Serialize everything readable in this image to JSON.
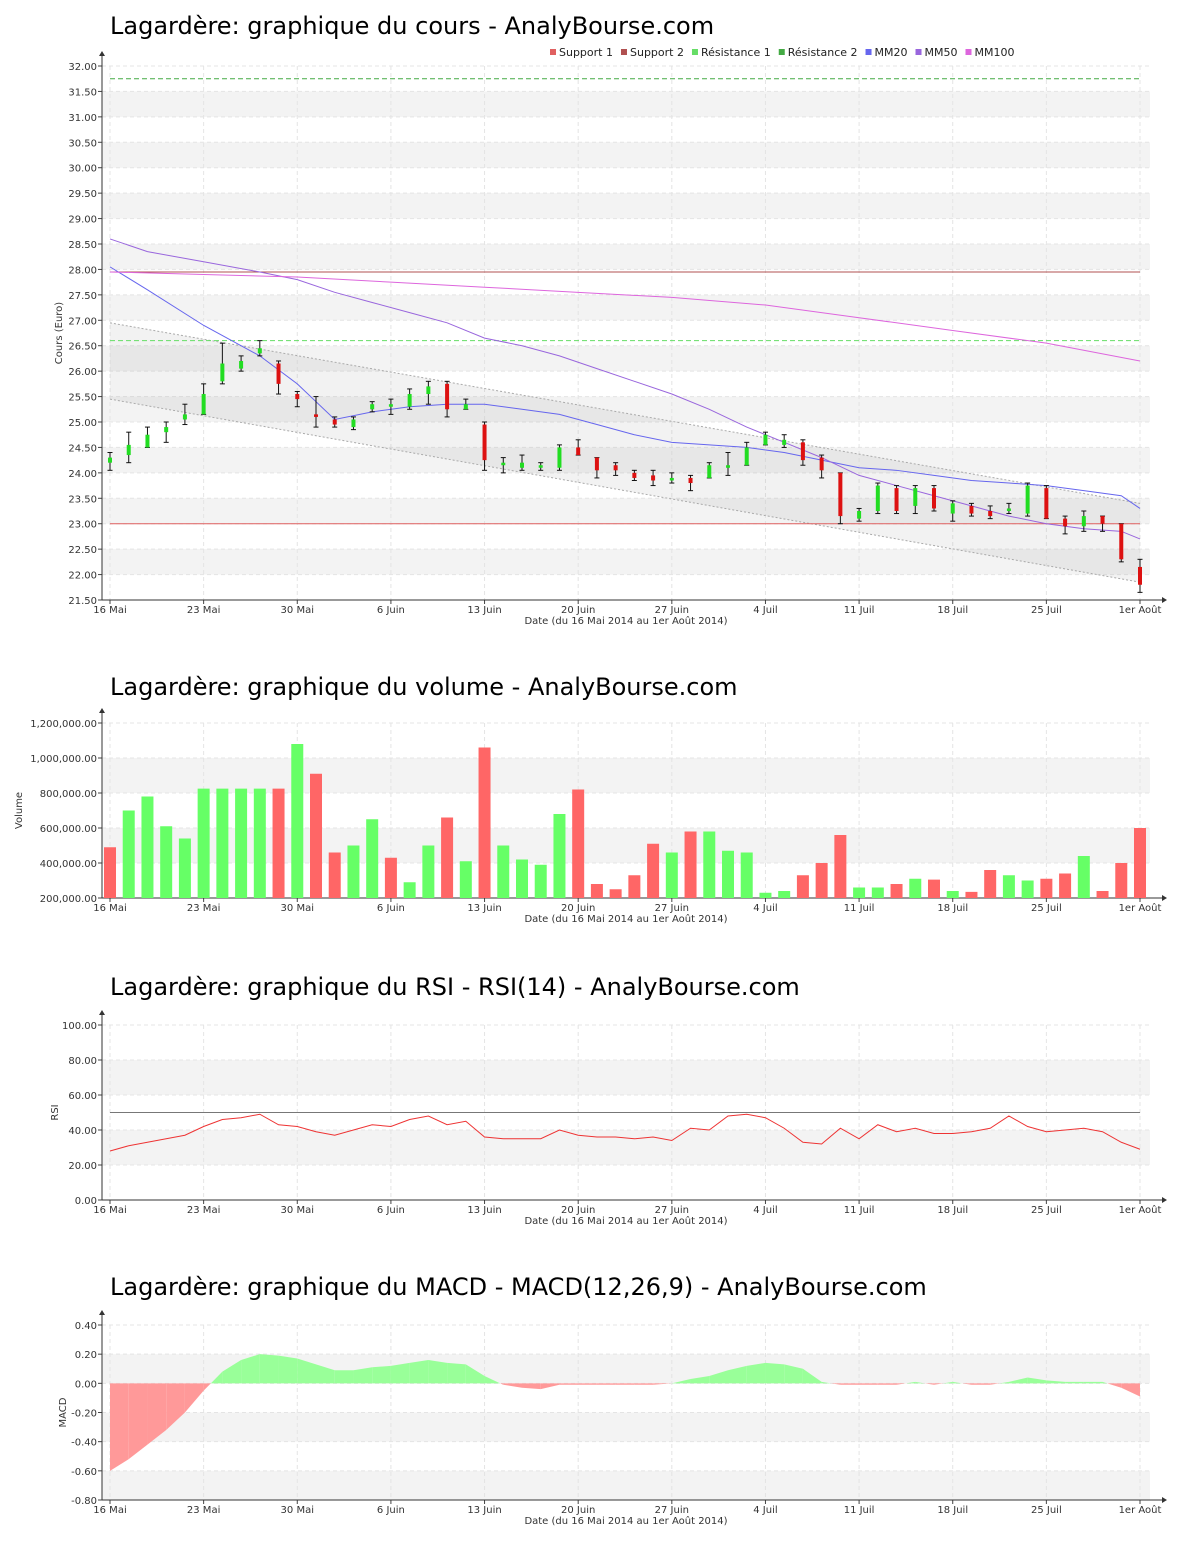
{
  "chart_data": [
    {
      "type": "candlestick",
      "title": "Lagardère: graphique du cours - AnalyBourse.com",
      "ylabel": "Cours (Euro)",
      "xlabel": "Date (du 16 Mai 2014 au 1er Août 2014)",
      "ylim": [
        21.5,
        32.0
      ],
      "yticks": [
        "32.00",
        "31.50",
        "31.00",
        "30.50",
        "30.00",
        "29.50",
        "29.00",
        "28.50",
        "28.00",
        "27.50",
        "27.00",
        "26.50",
        "26.00",
        "25.50",
        "25.00",
        "24.50",
        "24.00",
        "23.50",
        "23.00",
        "22.50",
        "22.00",
        "21.50"
      ],
      "xticks": [
        {
          "i": 0,
          "label": "16 Mai"
        },
        {
          "i": 5,
          "label": "23 Mai"
        },
        {
          "i": 10,
          "label": "30 Mai"
        },
        {
          "i": 15,
          "label": "6 Juin"
        },
        {
          "i": 20,
          "label": "13 Juin"
        },
        {
          "i": 25,
          "label": "20 Juin"
        },
        {
          "i": 30,
          "label": "27 Juin"
        },
        {
          "i": 35,
          "label": "4 Juil"
        },
        {
          "i": 40,
          "label": "11 Juil"
        },
        {
          "i": 45,
          "label": "18 Juil"
        },
        {
          "i": 50,
          "label": "25 Juil"
        },
        {
          "i": 55,
          "label": "1er Août"
        }
      ],
      "legend": [
        {
          "name": "Support 1",
          "color": "#e06060"
        },
        {
          "name": "Support 2",
          "color": "#b05050"
        },
        {
          "name": "Résistance 1",
          "color": "#66dd66"
        },
        {
          "name": "Résistance 2",
          "color": "#44aa44"
        },
        {
          "name": "MM20",
          "color": "#6666ee"
        },
        {
          "name": "MM50",
          "color": "#9966dd"
        },
        {
          "name": "MM100",
          "color": "#dd66dd"
        }
      ],
      "candles": [
        {
          "o": 24.2,
          "c": 24.3,
          "h": 24.4,
          "l": 24.05
        },
        {
          "o": 24.35,
          "c": 24.55,
          "h": 24.8,
          "l": 24.2
        },
        {
          "o": 24.5,
          "c": 24.75,
          "h": 24.9,
          "l": 24.5
        },
        {
          "o": 24.8,
          "c": 24.9,
          "h": 25.0,
          "l": 24.6
        },
        {
          "o": 25.05,
          "c": 25.15,
          "h": 25.35,
          "l": 24.95
        },
        {
          "o": 25.15,
          "c": 25.55,
          "h": 25.75,
          "l": 25.15
        },
        {
          "o": 25.8,
          "c": 26.15,
          "h": 26.55,
          "l": 25.75
        },
        {
          "o": 26.05,
          "c": 26.2,
          "h": 26.3,
          "l": 26.0
        },
        {
          "o": 26.35,
          "c": 26.45,
          "h": 26.6,
          "l": 26.3
        },
        {
          "o": 26.15,
          "c": 25.75,
          "h": 26.2,
          "l": 25.55
        },
        {
          "o": 25.55,
          "c": 25.45,
          "h": 25.6,
          "l": 25.3
        },
        {
          "o": 25.15,
          "c": 25.1,
          "h": 25.5,
          "l": 24.9
        },
        {
          "o": 25.05,
          "c": 24.95,
          "h": 25.1,
          "l": 24.9
        },
        {
          "o": 24.9,
          "c": 25.05,
          "h": 25.1,
          "l": 24.85
        },
        {
          "o": 25.25,
          "c": 25.35,
          "h": 25.4,
          "l": 25.2
        },
        {
          "o": 25.3,
          "c": 25.35,
          "h": 25.45,
          "l": 25.15
        },
        {
          "o": 25.3,
          "c": 25.55,
          "h": 25.65,
          "l": 25.25
        },
        {
          "o": 25.55,
          "c": 25.7,
          "h": 25.8,
          "l": 25.35
        },
        {
          "o": 25.75,
          "c": 25.25,
          "h": 25.8,
          "l": 25.1
        },
        {
          "o": 25.25,
          "c": 25.35,
          "h": 25.45,
          "l": 25.25
        },
        {
          "o": 24.95,
          "c": 24.25,
          "h": 25.0,
          "l": 24.05
        },
        {
          "o": 24.15,
          "c": 24.2,
          "h": 24.3,
          "l": 24.0
        },
        {
          "o": 24.1,
          "c": 24.2,
          "h": 24.35,
          "l": 24.05
        },
        {
          "o": 24.1,
          "c": 24.15,
          "h": 24.2,
          "l": 24.05
        },
        {
          "o": 24.1,
          "c": 24.5,
          "h": 24.55,
          "l": 24.05
        },
        {
          "o": 24.5,
          "c": 24.35,
          "h": 24.65,
          "l": 24.35
        },
        {
          "o": 24.3,
          "c": 24.05,
          "h": 24.3,
          "l": 23.9
        },
        {
          "o": 24.15,
          "c": 24.05,
          "h": 24.2,
          "l": 23.95
        },
        {
          "o": 24.0,
          "c": 23.9,
          "h": 24.05,
          "l": 23.85
        },
        {
          "o": 23.95,
          "c": 23.85,
          "h": 24.05,
          "l": 23.75
        },
        {
          "o": 23.85,
          "c": 23.9,
          "h": 24.0,
          "l": 23.8
        },
        {
          "o": 23.9,
          "c": 23.8,
          "h": 23.95,
          "l": 23.65
        },
        {
          "o": 23.9,
          "c": 24.15,
          "h": 24.2,
          "l": 23.9
        },
        {
          "o": 24.1,
          "c": 24.15,
          "h": 24.4,
          "l": 23.95
        },
        {
          "o": 24.15,
          "c": 24.5,
          "h": 24.6,
          "l": 24.15
        },
        {
          "o": 24.55,
          "c": 24.75,
          "h": 24.8,
          "l": 24.55
        },
        {
          "o": 24.55,
          "c": 24.65,
          "h": 24.75,
          "l": 24.5
        },
        {
          "o": 24.6,
          "c": 24.25,
          "h": 24.65,
          "l": 24.15
        },
        {
          "o": 24.3,
          "c": 24.05,
          "h": 24.35,
          "l": 23.9
        },
        {
          "o": 24.0,
          "c": 23.15,
          "h": 24.0,
          "l": 23.0
        },
        {
          "o": 23.1,
          "c": 23.25,
          "h": 23.3,
          "l": 23.05
        },
        {
          "o": 23.25,
          "c": 23.75,
          "h": 23.8,
          "l": 23.2
        },
        {
          "o": 23.7,
          "c": 23.25,
          "h": 23.75,
          "l": 23.2
        },
        {
          "o": 23.35,
          "c": 23.7,
          "h": 23.75,
          "l": 23.2
        },
        {
          "o": 23.7,
          "c": 23.3,
          "h": 23.75,
          "l": 23.25
        },
        {
          "o": 23.2,
          "c": 23.4,
          "h": 23.45,
          "l": 23.05
        },
        {
          "o": 23.35,
          "c": 23.2,
          "h": 23.4,
          "l": 23.15
        },
        {
          "o": 23.25,
          "c": 23.15,
          "h": 23.35,
          "l": 23.1
        },
        {
          "o": 23.25,
          "c": 23.3,
          "h": 23.4,
          "l": 23.2
        },
        {
          "o": 23.2,
          "c": 23.75,
          "h": 23.8,
          "l": 23.15
        },
        {
          "o": 23.7,
          "c": 23.1,
          "h": 23.75,
          "l": 23.1
        },
        {
          "o": 23.1,
          "c": 22.95,
          "h": 23.15,
          "l": 22.8
        },
        {
          "o": 22.95,
          "c": 23.15,
          "h": 23.25,
          "l": 22.85
        },
        {
          "o": 23.15,
          "c": 23.0,
          "h": 23.15,
          "l": 22.85
        },
        {
          "o": 23.0,
          "c": 22.3,
          "h": 23.0,
          "l": 22.25
        },
        {
          "o": 22.15,
          "c": 21.8,
          "h": 22.3,
          "l": 21.65
        }
      ],
      "lines": [
        {
          "name": "MM20",
          "color": "#6666ee",
          "points": [
            [
              0,
              28.05
            ],
            [
              2,
              27.6
            ],
            [
              5,
              26.9
            ],
            [
              8,
              26.3
            ],
            [
              10,
              25.75
            ],
            [
              12,
              25.05
            ],
            [
              14,
              25.2
            ],
            [
              16,
              25.3
            ],
            [
              18,
              25.35
            ],
            [
              20,
              25.35
            ],
            [
              22,
              25.25
            ],
            [
              24,
              25.15
            ],
            [
              26,
              24.95
            ],
            [
              28,
              24.75
            ],
            [
              30,
              24.6
            ],
            [
              32,
              24.55
            ],
            [
              34,
              24.5
            ],
            [
              36,
              24.4
            ],
            [
              38,
              24.25
            ],
            [
              40,
              24.1
            ],
            [
              42,
              24.05
            ],
            [
              44,
              23.95
            ],
            [
              46,
              23.85
            ],
            [
              48,
              23.8
            ],
            [
              50,
              23.75
            ],
            [
              52,
              23.65
            ],
            [
              54,
              23.55
            ],
            [
              55,
              23.3
            ]
          ]
        },
        {
          "name": "MM50",
          "color": "#9966dd",
          "points": [
            [
              0,
              28.6
            ],
            [
              2,
              28.35
            ],
            [
              5,
              28.15
            ],
            [
              8,
              27.95
            ],
            [
              10,
              27.8
            ],
            [
              12,
              27.55
            ],
            [
              14,
              27.35
            ],
            [
              16,
              27.15
            ],
            [
              18,
              26.95
            ],
            [
              20,
              26.65
            ],
            [
              22,
              26.5
            ],
            [
              24,
              26.3
            ],
            [
              26,
              26.05
            ],
            [
              28,
              25.8
            ],
            [
              30,
              25.55
            ],
            [
              32,
              25.25
            ],
            [
              34,
              24.9
            ],
            [
              36,
              24.6
            ],
            [
              38,
              24.3
            ],
            [
              40,
              23.95
            ],
            [
              42,
              23.75
            ],
            [
              44,
              23.55
            ],
            [
              46,
              23.35
            ],
            [
              48,
              23.15
            ],
            [
              50,
              23.0
            ],
            [
              52,
              22.9
            ],
            [
              54,
              22.85
            ],
            [
              55,
              22.7
            ]
          ]
        },
        {
          "name": "MM100",
          "color": "#dd66dd",
          "points": [
            [
              0,
              27.95
            ],
            [
              5,
              27.9
            ],
            [
              10,
              27.85
            ],
            [
              15,
              27.75
            ],
            [
              20,
              27.65
            ],
            [
              25,
              27.55
            ],
            [
              30,
              27.45
            ],
            [
              35,
              27.3
            ],
            [
              40,
              27.05
            ],
            [
              45,
              26.8
            ],
            [
              50,
              26.55
            ],
            [
              55,
              26.2
            ]
          ]
        }
      ],
      "channel": {
        "upper": [
          [
            0,
            26.95
          ],
          [
            55,
            23.4
          ]
        ],
        "lower": [
          [
            0,
            25.45
          ],
          [
            55,
            21.85
          ]
        ]
      },
      "hlines": [
        {
          "name": "Support 1",
          "y": 23.0,
          "color": "#e06060",
          "style": "solid"
        },
        {
          "name": "Support 2",
          "y": 27.95,
          "color": "#b05050",
          "style": "solid"
        },
        {
          "name": "Résistance 1",
          "y": 26.6,
          "color": "#66dd66",
          "style": "dashed"
        },
        {
          "name": "Résistance 2",
          "y": 31.75,
          "color": "#44aa44",
          "style": "dashed"
        }
      ]
    },
    {
      "type": "bar",
      "title": "Lagardère: graphique du volume - AnalyBourse.com",
      "ylabel": "Volume",
      "xlabel": "Date (du 16 Mai 2014 au 1er Août 2014)",
      "ylim": [
        200000,
        1200000
      ],
      "yticks": [
        "1,200,000.00",
        "1,000,000.00",
        "800,000.00",
        "600,000.00",
        "400,000.00",
        "200,000.00"
      ],
      "values": [
        490000,
        700000,
        780000,
        610000,
        540000,
        825000,
        825000,
        825000,
        825000,
        825000,
        1080000,
        910000,
        460000,
        500000,
        650000,
        430000,
        290000,
        500000,
        660000,
        410000,
        1060000,
        500000,
        420000,
        390000,
        680000,
        820000,
        280000,
        250000,
        330000,
        510000,
        460000,
        580000,
        580000,
        470000,
        460000,
        230000,
        240000,
        330000,
        400000,
        560000,
        260000,
        260000,
        280000,
        310000,
        305000,
        240000,
        235000,
        360000,
        330000,
        300000,
        310000,
        340000,
        440000,
        240000,
        400000,
        600000
      ],
      "up": [
        0,
        1,
        1,
        1,
        1,
        1,
        1,
        1,
        1,
        0,
        1,
        0,
        0,
        1,
        1,
        0,
        1,
        1,
        0,
        1,
        0,
        1,
        1,
        1,
        1,
        0,
        0,
        0,
        0,
        0,
        1,
        0,
        1,
        1,
        1,
        1,
        1,
        0,
        0,
        0,
        1,
        1,
        0,
        1,
        0,
        1,
        0,
        0,
        1,
        1,
        0,
        0,
        1,
        0,
        0,
        0
      ]
    },
    {
      "type": "line",
      "title": "Lagardère: graphique du RSI - RSI(14) - AnalyBourse.com",
      "ylabel": "RSI",
      "xlabel": "Date (du 16 Mai 2014 au 1er Août 2014)",
      "ylim": [
        0,
        100
      ],
      "yticks": [
        "100.00",
        "80.00",
        "60.00",
        "40.00",
        "20.00",
        "0.00"
      ],
      "reference": 50,
      "values": [
        28,
        31,
        33,
        35,
        37,
        42,
        46,
        47,
        49,
        43,
        42,
        39,
        37,
        40,
        43,
        42,
        46,
        48,
        43,
        45,
        36,
        35,
        35,
        35,
        40,
        37,
        36,
        36,
        35,
        36,
        34,
        41,
        40,
        48,
        49,
        47,
        41,
        33,
        32,
        41,
        35,
        43,
        39,
        41,
        38,
        38,
        39,
        41,
        48,
        42,
        39,
        40,
        41,
        39,
        33,
        29
      ]
    },
    {
      "type": "area",
      "title": "Lagardère: graphique du MACD - MACD(12,26,9) - AnalyBourse.com",
      "ylabel": "MACD",
      "xlabel": "Date (du 16 Mai 2014 au 1er Août 2014)",
      "ylim": [
        -0.8,
        0.4
      ],
      "yticks": [
        "0.40",
        "0.20",
        "0.00",
        "-0.20",
        "-0.40",
        "-0.60",
        "-0.80"
      ],
      "values": [
        -0.6,
        -0.52,
        -0.42,
        -0.32,
        -0.2,
        -0.05,
        0.08,
        0.16,
        0.2,
        0.19,
        0.17,
        0.13,
        0.09,
        0.09,
        0.11,
        0.12,
        0.14,
        0.16,
        0.14,
        0.13,
        0.05,
        -0.01,
        -0.03,
        -0.04,
        -0.01,
        -0.01,
        -0.01,
        -0.01,
        -0.01,
        -0.01,
        0.0,
        0.03,
        0.05,
        0.09,
        0.12,
        0.14,
        0.13,
        0.1,
        0.01,
        -0.01,
        -0.01,
        -0.01,
        -0.01,
        0.01,
        -0.01,
        0.01,
        -0.01,
        -0.01,
        0.01,
        0.04,
        0.02,
        0.01,
        0.01,
        0.01,
        -0.03,
        -0.09
      ]
    }
  ]
}
